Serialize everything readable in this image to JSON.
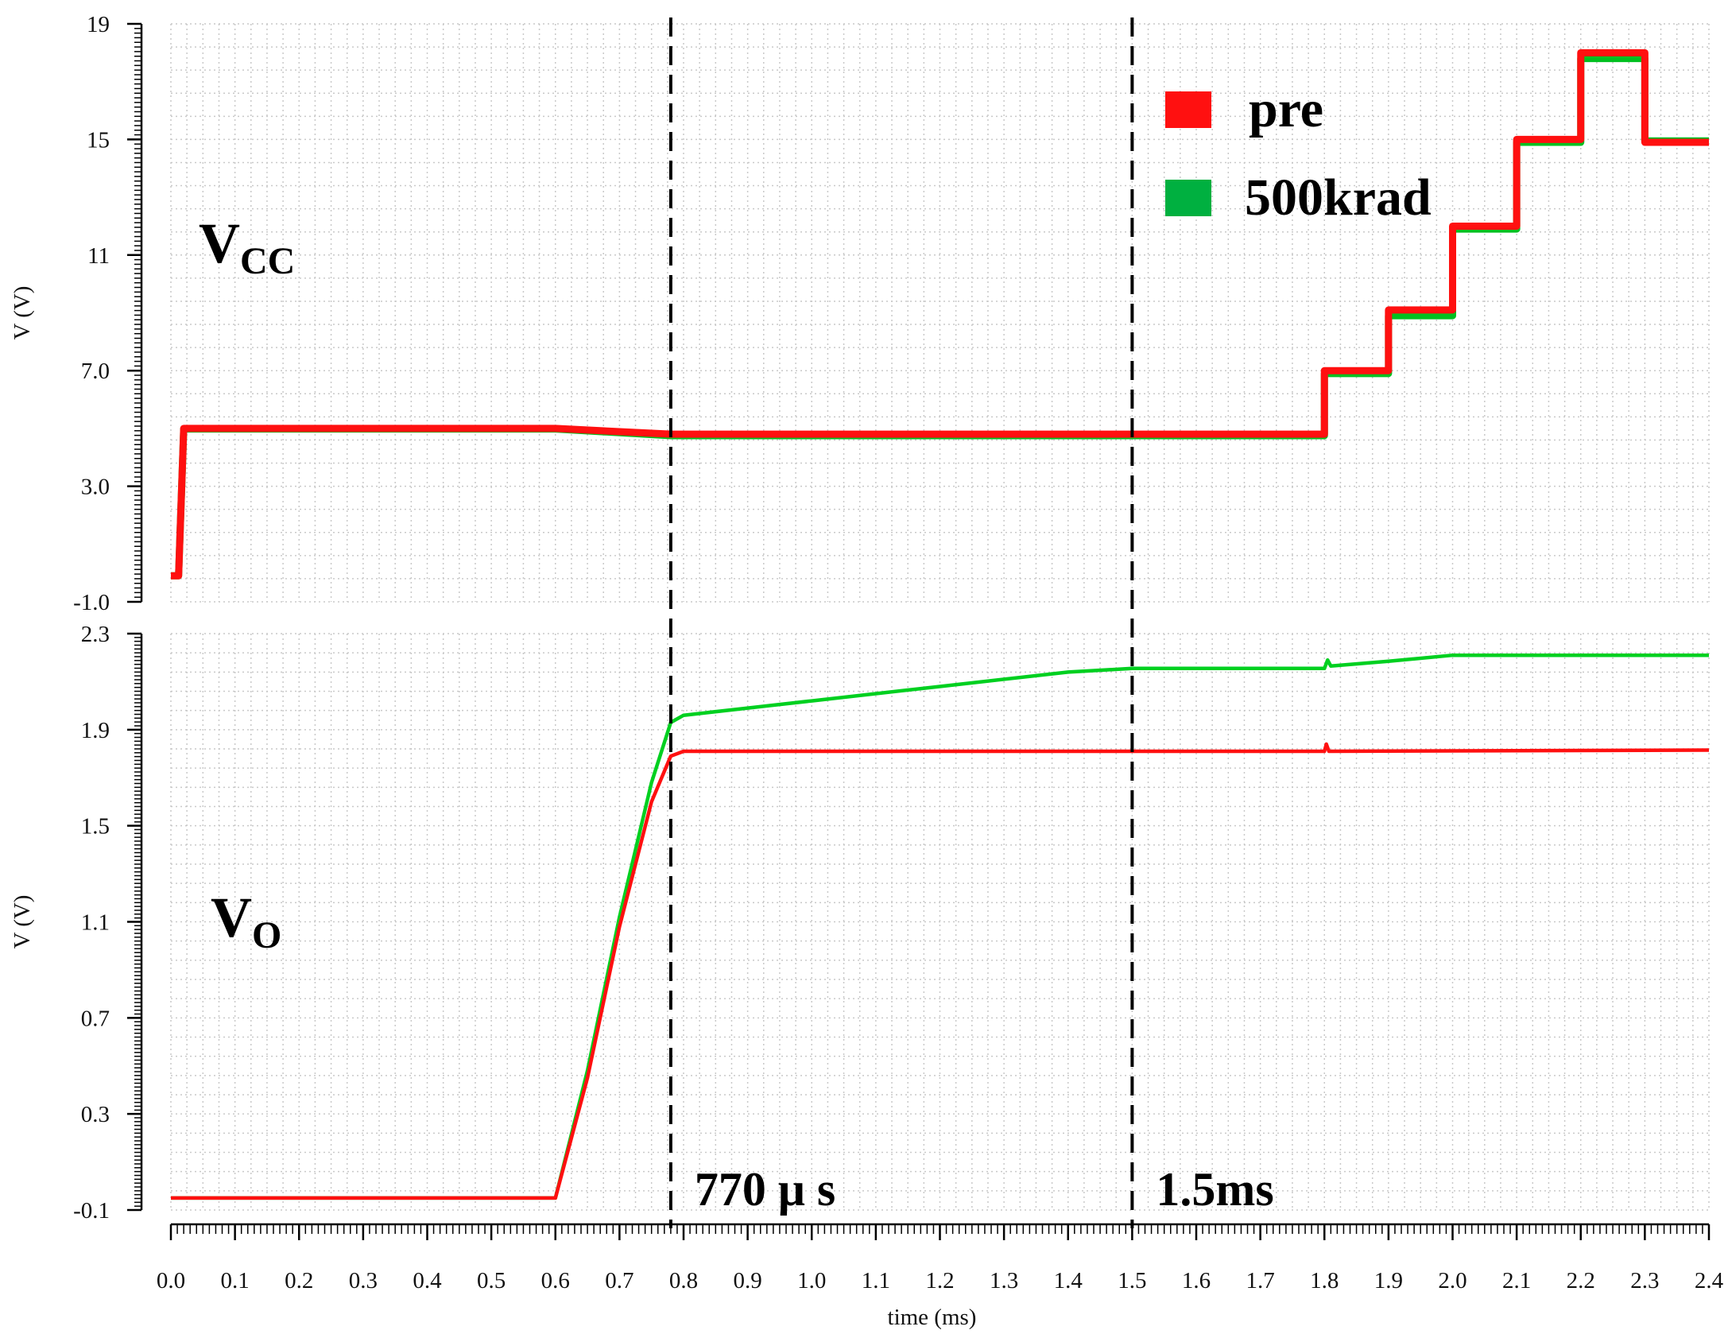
{
  "chart_data": [
    {
      "type": "line",
      "panel": "top",
      "label_main": "V",
      "label_sub": "CC",
      "xlabel": "time (ms)",
      "ylabel": "V (V)",
      "xlim": [
        0,
        2.4
      ],
      "ylim": [
        -1.0,
        19
      ],
      "yticks": [
        "-1.0",
        "3.0",
        "7.0",
        "11",
        "15",
        "19"
      ],
      "ytick_values": [
        -1.0,
        3.0,
        7.0,
        11,
        15,
        19
      ],
      "grid": true,
      "series": [
        {
          "name": "500krad",
          "color": "#00c020",
          "x": [
            0.0,
            0.012,
            0.02,
            0.6,
            0.78,
            1.8,
            1.8,
            1.9,
            1.9,
            2.0,
            2.0,
            2.1,
            2.1,
            2.2,
            2.2,
            2.3,
            2.3,
            2.4
          ],
          "y": [
            -0.1,
            -0.1,
            4.98,
            4.98,
            4.75,
            4.75,
            6.9,
            6.9,
            8.9,
            8.9,
            11.9,
            11.9,
            14.9,
            14.9,
            17.8,
            17.8,
            14.95,
            14.95
          ]
        },
        {
          "name": "pre",
          "color": "#ff1010",
          "x": [
            0.0,
            0.012,
            0.02,
            0.6,
            0.78,
            1.8,
            1.8,
            1.9,
            1.9,
            2.0,
            2.0,
            2.1,
            2.1,
            2.2,
            2.2,
            2.3,
            2.3,
            2.4
          ],
          "y": [
            -0.1,
            -0.1,
            5.0,
            5.0,
            4.8,
            4.8,
            7.0,
            7.0,
            9.1,
            9.1,
            12.0,
            12.0,
            15.0,
            15.0,
            18.0,
            18.0,
            14.9,
            14.9
          ]
        }
      ]
    },
    {
      "type": "line",
      "panel": "bottom",
      "label_main": "V",
      "label_sub": "O",
      "xlabel": "time (ms)",
      "ylabel": "V (V)",
      "xlim": [
        0,
        2.4
      ],
      "ylim": [
        -0.1,
        2.3
      ],
      "yticks": [
        "-0.1",
        "0.3",
        "0.7",
        "1.1",
        "1.5",
        "1.9",
        "2.3"
      ],
      "ytick_values": [
        -0.1,
        0.3,
        0.7,
        1.1,
        1.5,
        1.9,
        2.3
      ],
      "xticks": [
        "0.0",
        "0.1",
        "0.2",
        "0.3",
        "0.4",
        "0.5",
        "0.6",
        "0.7",
        "0.8",
        "0.9",
        "1.0",
        "1.1",
        "1.2",
        "1.3",
        "1.4",
        "1.5",
        "1.6",
        "1.7",
        "1.8",
        "1.9",
        "2.0",
        "2.1",
        "2.2",
        "2.3",
        "2.4"
      ],
      "grid": true,
      "series": [
        {
          "name": "500krad",
          "color": "#00d020",
          "x": [
            0.0,
            0.6,
            0.65,
            0.7,
            0.75,
            0.78,
            0.8,
            1.0,
            1.2,
            1.4,
            1.5,
            1.8,
            1.805,
            1.81,
            1.9,
            2.0,
            2.1,
            2.4
          ],
          "y": [
            -0.05,
            -0.05,
            0.48,
            1.12,
            1.68,
            1.93,
            1.96,
            2.02,
            2.08,
            2.14,
            2.155,
            2.155,
            2.19,
            2.165,
            2.185,
            2.21,
            2.21,
            2.21
          ]
        },
        {
          "name": "pre",
          "color": "#ff1010",
          "x": [
            0.0,
            0.6,
            0.65,
            0.7,
            0.75,
            0.78,
            0.8,
            1.8,
            1.803,
            1.807,
            2.4
          ],
          "y": [
            -0.05,
            -0.05,
            0.45,
            1.08,
            1.6,
            1.79,
            1.81,
            1.81,
            1.84,
            1.81,
            1.815
          ]
        }
      ]
    }
  ],
  "legend": {
    "items": [
      {
        "label": "pre",
        "color": "#ff1010"
      },
      {
        "label": "500krad",
        "color": "#00b040"
      }
    ]
  },
  "markers": [
    {
      "x": 0.78,
      "label": "770 μ s"
    },
    {
      "x": 1.5,
      "label": "1.5ms"
    }
  ]
}
